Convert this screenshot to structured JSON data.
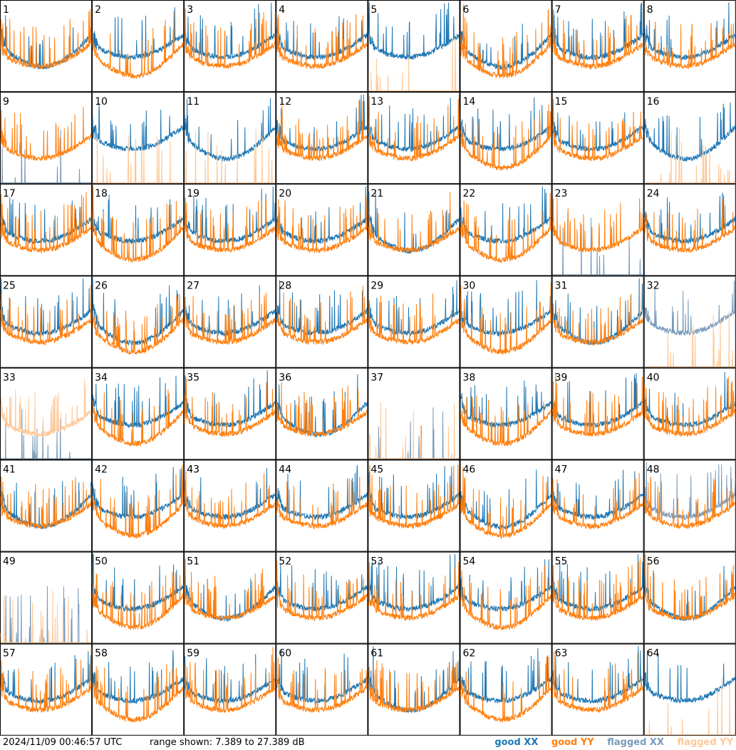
{
  "chart_data": {
    "type": "line",
    "layout": "8x8 small multiples",
    "panel_count": 64,
    "panels": [
      {
        "label": "1",
        "xx": "good",
        "yy": "good"
      },
      {
        "label": "2",
        "xx": "good",
        "yy": "good"
      },
      {
        "label": "3",
        "xx": "good",
        "yy": "good"
      },
      {
        "label": "4",
        "xx": "good",
        "yy": "good"
      },
      {
        "label": "5",
        "xx": "good",
        "yy": "flagged"
      },
      {
        "label": "6",
        "xx": "good",
        "yy": "good"
      },
      {
        "label": "7",
        "xx": "good",
        "yy": "good"
      },
      {
        "label": "8",
        "xx": "good",
        "yy": "good"
      },
      {
        "label": "9",
        "xx": "flagged",
        "yy": "good"
      },
      {
        "label": "10",
        "xx": "good",
        "yy": "flagged"
      },
      {
        "label": "11",
        "xx": "good",
        "yy": "flagged"
      },
      {
        "label": "12",
        "xx": "good",
        "yy": "good"
      },
      {
        "label": "13",
        "xx": "good",
        "yy": "good"
      },
      {
        "label": "14",
        "xx": "good",
        "yy": "good"
      },
      {
        "label": "15",
        "xx": "good",
        "yy": "good"
      },
      {
        "label": "16",
        "xx": "good",
        "yy": "flagged"
      },
      {
        "label": "17",
        "xx": "good",
        "yy": "good"
      },
      {
        "label": "18",
        "xx": "good",
        "yy": "good"
      },
      {
        "label": "19",
        "xx": "good",
        "yy": "good"
      },
      {
        "label": "20",
        "xx": "good",
        "yy": "good"
      },
      {
        "label": "21",
        "xx": "good",
        "yy": "good"
      },
      {
        "label": "22",
        "xx": "good",
        "yy": "good"
      },
      {
        "label": "23",
        "xx": "flagged",
        "yy": "good"
      },
      {
        "label": "24",
        "xx": "good",
        "yy": "good"
      },
      {
        "label": "25",
        "xx": "good",
        "yy": "good"
      },
      {
        "label": "26",
        "xx": "good",
        "yy": "good"
      },
      {
        "label": "27",
        "xx": "good",
        "yy": "good"
      },
      {
        "label": "28",
        "xx": "good",
        "yy": "good"
      },
      {
        "label": "29",
        "xx": "good",
        "yy": "good"
      },
      {
        "label": "30",
        "xx": "good",
        "yy": "good"
      },
      {
        "label": "31",
        "xx": "good",
        "yy": "good"
      },
      {
        "label": "32",
        "xx": "flagged",
        "yy": "flagged"
      },
      {
        "label": "33",
        "xx": "flagged",
        "yy": "flagged"
      },
      {
        "label": "34",
        "xx": "good",
        "yy": "good"
      },
      {
        "label": "35",
        "xx": "good",
        "yy": "good"
      },
      {
        "label": "36",
        "xx": "good",
        "yy": "good"
      },
      {
        "label": "37",
        "xx": "flagged",
        "yy": "flagged"
      },
      {
        "label": "38",
        "xx": "good",
        "yy": "good"
      },
      {
        "label": "39",
        "xx": "good",
        "yy": "good"
      },
      {
        "label": "40",
        "xx": "good",
        "yy": "good"
      },
      {
        "label": "41",
        "xx": "good",
        "yy": "good"
      },
      {
        "label": "42",
        "xx": "good",
        "yy": "good"
      },
      {
        "label": "43",
        "xx": "good",
        "yy": "good"
      },
      {
        "label": "44",
        "xx": "good",
        "yy": "good"
      },
      {
        "label": "45",
        "xx": "good",
        "yy": "good"
      },
      {
        "label": "46",
        "xx": "good",
        "yy": "good"
      },
      {
        "label": "47",
        "xx": "good",
        "yy": "good"
      },
      {
        "label": "48",
        "xx": "flagged",
        "yy": "good"
      },
      {
        "label": "49",
        "xx": "flagged",
        "yy": "flagged"
      },
      {
        "label": "50",
        "xx": "good",
        "yy": "good"
      },
      {
        "label": "51",
        "xx": "good",
        "yy": "good"
      },
      {
        "label": "52",
        "xx": "good",
        "yy": "good"
      },
      {
        "label": "53",
        "xx": "good",
        "yy": "good"
      },
      {
        "label": "54",
        "xx": "good",
        "yy": "good"
      },
      {
        "label": "55",
        "xx": "good",
        "yy": "good"
      },
      {
        "label": "56",
        "xx": "good",
        "yy": "good"
      },
      {
        "label": "57",
        "xx": "good",
        "yy": "good"
      },
      {
        "label": "58",
        "xx": "good",
        "yy": "good"
      },
      {
        "label": "59",
        "xx": "good",
        "yy": "good"
      },
      {
        "label": "60",
        "xx": "good",
        "yy": "good"
      },
      {
        "label": "61",
        "xx": "good",
        "yy": "good"
      },
      {
        "label": "62",
        "xx": "good",
        "yy": "good"
      },
      {
        "label": "63",
        "xx": "good",
        "yy": "good"
      },
      {
        "label": "64",
        "xx": "good",
        "yy": "flagged"
      }
    ],
    "ylim": [
      7.389,
      27.389
    ],
    "yunit": "dB",
    "grid": false,
    "legend_position": "bottom-right",
    "legend": [
      {
        "name": "good XX",
        "color": "#1f77b4"
      },
      {
        "name": "good YY",
        "color": "#ff7f0e"
      },
      {
        "name": "flagged XX",
        "color": "#7a9bbb"
      },
      {
        "name": "flagged YY",
        "color": "#ffc896"
      }
    ]
  },
  "footer": {
    "timestamp": "2024/11/09 00:46:57 UTC",
    "range_text": "range shown: 7.389 to 27.389 dB"
  },
  "colors": {
    "good_xx": "#1f77b4",
    "good_yy": "#ff7f0e",
    "flagged_xx": "#7a9bbb",
    "flagged_yy": "#ffc896"
  }
}
